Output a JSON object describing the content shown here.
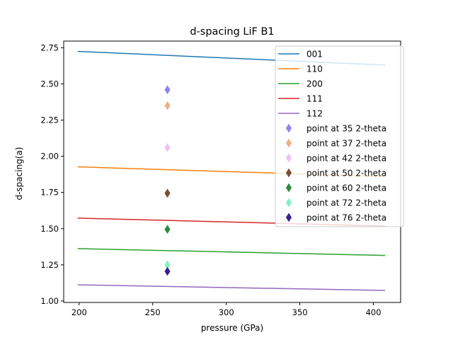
{
  "chart_data": {
    "type": "line",
    "title": "d-spacing LiF B1",
    "xlabel": "pressure (GPa)",
    "ylabel": "d-spacing(a)",
    "xlim": [
      189.5,
      418.5
    ],
    "ylim": [
      0.99,
      2.796
    ],
    "xticks": [
      200,
      250,
      300,
      350,
      400
    ],
    "yticks": [
      1.0,
      1.25,
      1.5,
      1.75,
      2.0,
      2.25,
      2.5,
      2.75
    ],
    "xtick_labels": [
      "200",
      "250",
      "300",
      "350",
      "400"
    ],
    "ytick_labels": [
      "1.00",
      "1.25",
      "1.50",
      "1.75",
      "2.00",
      "2.25",
      "2.50",
      "2.75"
    ],
    "legend_position": "upper-right",
    "line_x": [
      199,
      408
    ],
    "series": [
      {
        "name": "001",
        "color": "#1f77b4",
        "y": [
          2.725,
          2.63
        ]
      },
      {
        "name": "110",
        "color": "#ff7f0e",
        "y": [
          1.927,
          1.86
        ]
      },
      {
        "name": "200",
        "color": "#2ca02c",
        "y": [
          1.362,
          1.315
        ]
      },
      {
        "name": "111",
        "color": "#d62728",
        "y": [
          1.573,
          1.518
        ]
      },
      {
        "name": "112",
        "color": "#9467bd",
        "y": [
          1.112,
          1.073
        ]
      }
    ],
    "points": [
      {
        "name": "point at 35 2-theta",
        "color": "#8f85f0",
        "x": 260,
        "y": 2.46
      },
      {
        "name": "point at 37 2-theta",
        "color": "#f0b08a",
        "x": 260,
        "y": 2.35
      },
      {
        "name": "point at 42 2-theta",
        "color": "#ecc2f7",
        "x": 260,
        "y": 2.06
      },
      {
        "name": "point at 50 2-theta",
        "color": "#7a4e34",
        "x": 260,
        "y": 1.745
      },
      {
        "name": "point at 60 2-theta",
        "color": "#2e8b3e",
        "x": 260,
        "y": 1.495
      },
      {
        "name": "point at 72 2-theta",
        "color": "#7ff2c0",
        "x": 260,
        "y": 1.25
      },
      {
        "name": "point at 76 2-theta",
        "color": "#3d1f8c",
        "x": 260,
        "y": 1.205
      }
    ]
  }
}
